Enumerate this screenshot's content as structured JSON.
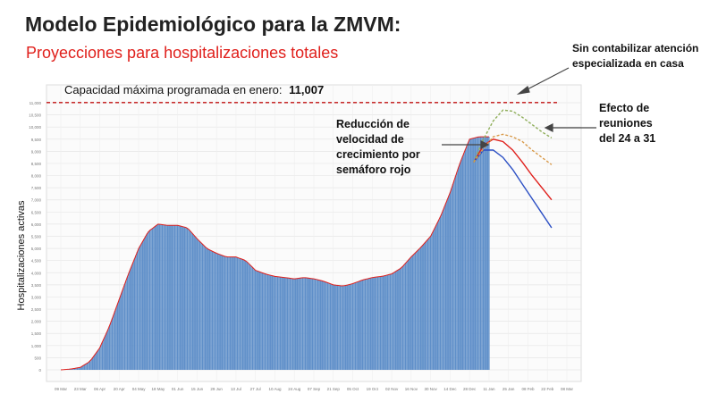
{
  "header": {
    "title": "Modelo Epidemiológico para la ZMVM:",
    "subtitle": "Proyecciones para hospitalizaciones totales"
  },
  "annotations": {
    "home_care": "Sin contabilizar atención\nespecializada en casa",
    "gatherings": "Efecto de\nreuniones\ndel 24 a 31",
    "red_light": "Reducción de\nvelocidad de\ncrecimiento por\nsemáforo rojo"
  },
  "capacity": {
    "label": "Capacidad máxima programada en enero:",
    "value_label": "11,007",
    "value": 11007
  },
  "colors": {
    "bars": "#5f8fc9",
    "fit_line": "#e0201c",
    "proj_red": "#e0201c",
    "proj_blue": "#2b4fc4",
    "proj_dashed_green": "#8fae5a",
    "proj_dashed_orange": "#d99a4a",
    "capacity_line": "#c01010",
    "grid": "#e6e6e6"
  },
  "chart_data": {
    "type": "bar",
    "ylabel": "Hospitalizaciones activas",
    "ylim": [
      0,
      11500
    ],
    "yticks": [
      0,
      500,
      1000,
      1500,
      2000,
      2500,
      3000,
      3500,
      4000,
      4500,
      5000,
      5500,
      6000,
      6500,
      7000,
      7500,
      8000,
      8500,
      9000,
      9500,
      10000,
      10500,
      11000
    ],
    "ytick_labels": [
      "0",
      "500",
      "1,000",
      "1,500",
      "2,000",
      "2,500",
      "3,000",
      "3,500",
      "4,000",
      "4,500",
      "5,000",
      "5,500",
      "6,000",
      "6,500",
      "7,000",
      "7,500",
      "8,000",
      "8,500",
      "9,000",
      "9,500",
      "10,000",
      "10,500",
      "11,000"
    ],
    "xticks": [
      "09 Mar",
      "23 Mar",
      "06 Apr",
      "20 Apr",
      "04 May",
      "18 May",
      "01 Jun",
      "15 Jun",
      "29 Jun",
      "13 Jul",
      "27 Jul",
      "10 Aug",
      "24 Aug",
      "07 Sep",
      "21 Sep",
      "05 Oct",
      "19 Oct",
      "02 Nov",
      "16 Nov",
      "30 Nov",
      "14 Dec",
      "28 Dec",
      "11 Jan",
      "25 Jan",
      "08 Feb",
      "22 Feb",
      "08 Mar"
    ],
    "observed": {
      "x_start": "2020-03-09",
      "x_end": "2021-01-11",
      "x_knots": [
        "2020-03-16",
        "2020-03-23",
        "2020-03-30",
        "2020-04-06",
        "2020-04-13",
        "2020-04-20",
        "2020-04-27",
        "2020-05-04",
        "2020-05-11",
        "2020-05-18",
        "2020-05-25",
        "2020-06-01",
        "2020-06-08",
        "2020-06-15",
        "2020-06-22",
        "2020-06-29",
        "2020-07-06",
        "2020-07-13",
        "2020-07-20",
        "2020-07-27",
        "2020-08-03",
        "2020-08-10",
        "2020-08-17",
        "2020-08-24",
        "2020-08-31",
        "2020-09-07",
        "2020-09-14",
        "2020-09-21",
        "2020-09-28",
        "2020-10-05",
        "2020-10-12",
        "2020-10-19",
        "2020-10-26",
        "2020-11-02",
        "2020-11-09",
        "2020-11-16",
        "2020-11-23",
        "2020-11-30",
        "2020-12-07",
        "2020-12-14",
        "2020-12-21",
        "2020-12-28",
        "2021-01-04",
        "2021-01-11"
      ],
      "values": [
        30,
        100,
        350,
        900,
        1800,
        2900,
        4000,
        5000,
        5700,
        6000,
        5950,
        5950,
        5850,
        5400,
        5000,
        4800,
        4650,
        4650,
        4500,
        4100,
        3950,
        3850,
        3800,
        3750,
        3800,
        3750,
        3650,
        3500,
        3450,
        3550,
        3700,
        3800,
        3850,
        3950,
        4200,
        4650,
        5050,
        5500,
        6300,
        7300,
        8500,
        9500,
        9600,
        9600
      ]
    },
    "series": [
      {
        "x": [
          "2020-12-31",
          "2021-01-07",
          "2021-01-14",
          "2021-01-21",
          "2021-01-28",
          "2021-02-04",
          "2021-02-11",
          "2021-02-18",
          "2021-02-25"
        ],
        "values": [
          8550,
          9250,
          9500,
          9400,
          9050,
          8550,
          8000,
          7500,
          7000
        ]
      },
      {
        "x": [
          "2020-12-31",
          "2021-01-07",
          "2021-01-14",
          "2021-01-21",
          "2021-01-28",
          "2021-02-04",
          "2021-02-11",
          "2021-02-18",
          "2021-02-25"
        ],
        "values": [
          8550,
          9050,
          9050,
          8750,
          8250,
          7650,
          7050,
          6450,
          5850
        ]
      },
      {
        "x": [
          "2020-12-31",
          "2021-01-07",
          "2021-01-14",
          "2021-01-21",
          "2021-01-28",
          "2021-02-04",
          "2021-02-11",
          "2021-02-18",
          "2021-02-25"
        ],
        "values": [
          8550,
          9500,
          10250,
          10700,
          10650,
          10400,
          10100,
          9800,
          9550
        ]
      },
      {
        "x": [
          "2020-12-31",
          "2021-01-07",
          "2021-01-14",
          "2021-01-21",
          "2021-01-28",
          "2021-02-04",
          "2021-02-11",
          "2021-02-18",
          "2021-02-25"
        ],
        "values": [
          8550,
          9100,
          9600,
          9700,
          9600,
          9400,
          9050,
          8750,
          8450
        ]
      }
    ]
  }
}
